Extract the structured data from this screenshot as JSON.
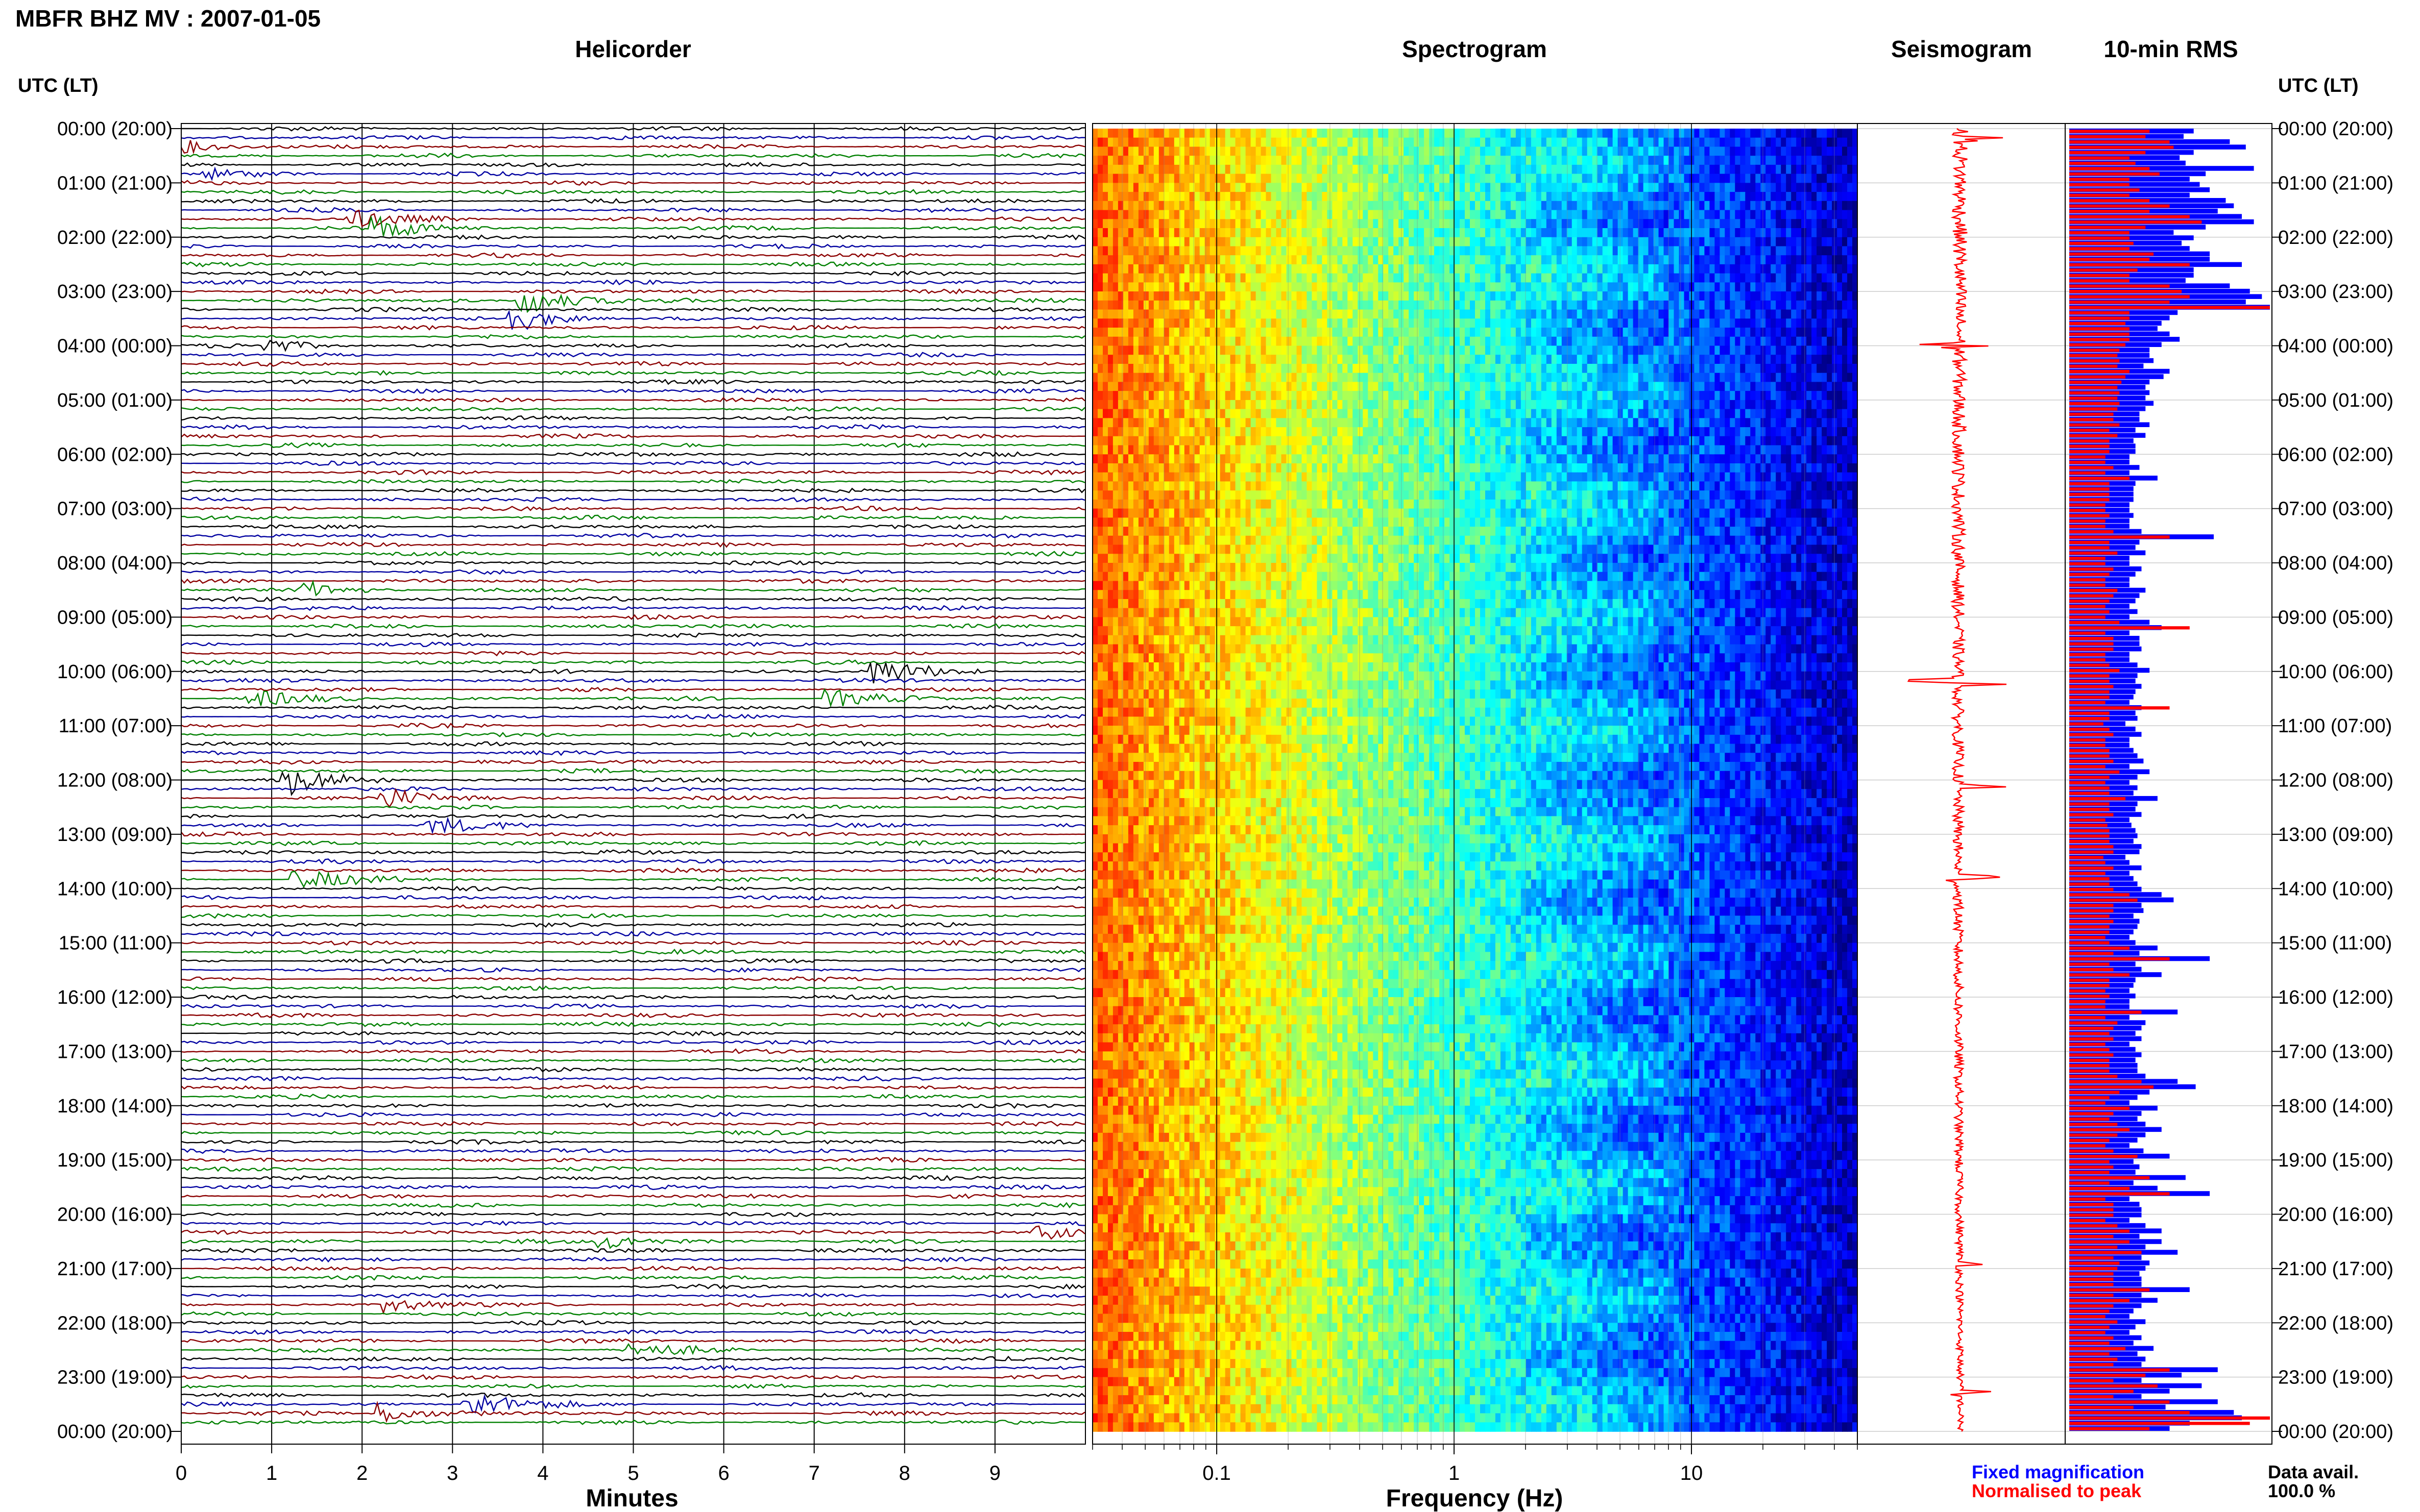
{
  "page_title": "MBFR BHZ MV : 2007-01-05",
  "panel_titles": {
    "helicorder": "Helicorder",
    "spectrogram": "Spectrogram",
    "seismogram": "Seismogram",
    "rms": "10-min RMS"
  },
  "time_axis_label": "UTC (LT)",
  "time_ticks": [
    "00:00 (20:00)",
    "01:00 (21:00)",
    "02:00 (22:00)",
    "03:00 (23:00)",
    "04:00 (00:00)",
    "05:00 (01:00)",
    "06:00 (02:00)",
    "07:00 (03:00)",
    "08:00 (04:00)",
    "09:00 (05:00)",
    "10:00 (06:00)",
    "11:00 (07:00)",
    "12:00 (08:00)",
    "13:00 (09:00)",
    "14:00 (10:00)",
    "15:00 (11:00)",
    "16:00 (12:00)",
    "17:00 (13:00)",
    "18:00 (14:00)",
    "19:00 (15:00)",
    "20:00 (16:00)",
    "21:00 (17:00)",
    "22:00 (18:00)",
    "23:00 (19:00)",
    "00:00 (20:00)"
  ],
  "minutes_axis": {
    "label": "Minutes",
    "ticks": [
      "0",
      "1",
      "2",
      "3",
      "4",
      "5",
      "6",
      "7",
      "8",
      "9"
    ]
  },
  "frequency_axis": {
    "label": "Frequency (Hz)",
    "ticks": [
      "0.1",
      "1",
      "10"
    ]
  },
  "legend": {
    "fixed": "Fixed magnification",
    "normalised": "Normalised to peak"
  },
  "availability": {
    "label": "Data avail.",
    "value": "100.0 %"
  },
  "colors": {
    "trace_cycle": [
      "#000000",
      "#0000a0",
      "#8b0000",
      "#008000"
    ],
    "rms_fixed": "#0000ff",
    "rms_normalised": "#ff0000",
    "seismogram": "#ff0000"
  },
  "chart_data": [
    {
      "type": "line",
      "name": "helicorder",
      "rows_per_hour": 6,
      "hours": 24,
      "x_range_minutes": [
        0,
        10
      ],
      "events": [
        {
          "hour": 0.33,
          "minute": 0.1,
          "amp": 2.0
        },
        {
          "hour": 0.83,
          "minute": 0.3,
          "amp": 1.5
        },
        {
          "hour": 1.67,
          "minute": 1.9,
          "amp": 3.0
        },
        {
          "hour": 1.83,
          "minute": 2.2,
          "amp": 3.5
        },
        {
          "hour": 3.17,
          "minute": 3.8,
          "amp": 5.0
        },
        {
          "hour": 3.5,
          "minute": 3.7,
          "amp": 4.0
        },
        {
          "hour": 4.0,
          "minute": 1.0,
          "amp": 2.0
        },
        {
          "hour": 8.5,
          "minute": 1.4,
          "amp": 2.5
        },
        {
          "hour": 10.0,
          "minute": 7.7,
          "amp": 4.0
        },
        {
          "hour": 10.5,
          "minute": 0.8,
          "amp": 2.5
        },
        {
          "hour": 10.5,
          "minute": 7.2,
          "amp": 3.0
        },
        {
          "hour": 12.0,
          "minute": 1.2,
          "amp": 4.5
        },
        {
          "hour": 12.33,
          "minute": 2.3,
          "amp": 3.0
        },
        {
          "hour": 12.83,
          "minute": 2.8,
          "amp": 2.5
        },
        {
          "hour": 13.83,
          "minute": 1.3,
          "amp": 3.5
        },
        {
          "hour": 20.5,
          "minute": 4.7,
          "amp": 2.5
        },
        {
          "hour": 20.33,
          "minute": 9.5,
          "amp": 2.5
        },
        {
          "hour": 21.67,
          "minute": 2.3,
          "amp": 2.5
        },
        {
          "hour": 22.5,
          "minute": 5.0,
          "amp": 2.5
        },
        {
          "hour": 23.5,
          "minute": 3.2,
          "amp": 4.5
        },
        {
          "hour": 23.67,
          "minute": 2.2,
          "amp": 3.5
        }
      ]
    },
    {
      "type": "heatmap",
      "name": "spectrogram",
      "xscale": "log",
      "xlim": [
        0.03,
        50
      ],
      "colormap": "jet",
      "dominant_band_hz": [
        0.03,
        0.1
      ],
      "hours": 24
    },
    {
      "type": "line",
      "name": "seismogram",
      "hours": 24,
      "spikes_hour": [
        0.2,
        4.0,
        10.2,
        12.1,
        13.8,
        20.9,
        23.3
      ]
    },
    {
      "type": "bar",
      "name": "10-min RMS",
      "orientation": "horizontal",
      "bins_per_hour": 6,
      "series": [
        {
          "name": "Fixed magnification",
          "values": [
            0.62,
            0.57,
            0.8,
            0.88,
            0.62,
            0.55,
            0.58,
            0.92,
            0.68,
            0.6,
            0.65,
            0.7,
            0.6,
            0.78,
            0.82,
            0.74,
            0.86,
            0.92,
            0.68,
            0.52,
            0.62,
            0.56,
            0.6,
            0.7,
            0.7,
            0.86,
            0.62,
            0.62,
            0.58,
            0.8,
            0.9,
            0.96,
            0.88,
            1.0,
            0.54,
            0.5,
            0.46,
            0.44,
            0.5,
            0.55,
            0.46,
            0.4,
            0.4,
            0.42,
            0.37,
            0.5,
            0.47,
            0.4,
            0.38,
            0.4,
            0.38,
            0.42,
            0.38,
            0.35,
            0.35,
            0.4,
            0.33,
            0.38,
            0.32,
            0.33,
            0.33,
            0.3,
            0.3,
            0.35,
            0.3,
            0.44,
            0.33,
            0.32,
            0.32,
            0.32,
            0.3,
            0.3,
            0.32,
            0.3,
            0.3,
            0.36,
            0.72,
            0.35,
            0.33,
            0.38,
            0.3,
            0.3,
            0.36,
            0.33,
            0.3,
            0.3,
            0.38,
            0.35,
            0.33,
            0.3,
            0.34,
            0.3,
            0.4,
            0.46,
            0.3,
            0.35,
            0.35,
            0.36,
            0.3,
            0.3,
            0.34,
            0.4,
            0.34,
            0.33,
            0.36,
            0.33,
            0.32,
            0.3,
            0.36,
            0.33,
            0.34,
            0.28,
            0.33,
            0.36,
            0.3,
            0.3,
            0.32,
            0.34,
            0.37,
            0.3,
            0.4,
            0.34,
            0.3,
            0.34,
            0.32,
            0.44,
            0.34,
            0.33,
            0.36,
            0.3,
            0.31,
            0.33,
            0.34,
            0.32,
            0.36,
            0.35,
            0.28,
            0.3,
            0.36,
            0.3,
            0.32,
            0.34,
            0.36,
            0.46,
            0.52,
            0.36,
            0.37,
            0.32,
            0.35,
            0.34,
            0.32,
            0.3,
            0.33,
            0.44,
            0.35,
            0.7,
            0.33,
            0.36,
            0.46,
            0.33,
            0.32,
            0.3,
            0.33,
            0.3,
            0.3,
            0.54,
            0.3,
            0.38,
            0.36,
            0.33,
            0.36,
            0.3,
            0.33,
            0.36,
            0.33,
            0.34,
            0.34,
            0.38,
            0.54,
            0.63,
            0.4,
            0.34,
            0.3,
            0.44,
            0.36,
            0.34,
            0.38,
            0.46,
            0.38,
            0.34,
            0.3,
            0.37,
            0.5,
            0.32,
            0.35,
            0.33,
            0.58,
            0.32,
            0.44,
            0.7,
            0.3,
            0.35,
            0.36,
            0.36,
            0.3,
            0.38,
            0.46,
            0.35,
            0.46,
            0.38,
            0.54,
            0.36,
            0.4,
            0.38,
            0.35,
            0.36,
            0.36,
            0.6,
            0.36,
            0.44,
            0.36,
            0.32,
            0.3,
            0.38,
            0.33,
            0.3,
            0.36,
            0.32,
            0.42,
            0.34,
            0.38,
            0.36,
            0.74,
            0.56,
            0.36,
            0.66,
            0.5,
            0.36,
            0.74,
            0.48,
            0.82,
            0.86,
            0.6,
            0.5
          ]
        },
        {
          "name": "Normalised to peak",
          "values": [
            0.4,
            0.38,
            0.5,
            0.52,
            0.38,
            0.3,
            0.33,
            0.4,
            0.45,
            0.3,
            0.3,
            0.35,
            0.3,
            0.4,
            0.5,
            0.4,
            0.6,
            0.66,
            0.38,
            0.3,
            0.3,
            0.32,
            0.3,
            0.42,
            0.4,
            0.6,
            0.34,
            0.3,
            0.3,
            0.5,
            0.56,
            0.6,
            0.5,
            1.0,
            0.3,
            0.3,
            0.28,
            0.3,
            0.3,
            0.3,
            0.28,
            0.25,
            0.24,
            0.25,
            0.24,
            0.3,
            0.28,
            0.26,
            0.24,
            0.25,
            0.24,
            0.25,
            0.24,
            0.22,
            0.22,
            0.25,
            0.2,
            0.24,
            0.2,
            0.2,
            0.2,
            0.18,
            0.18,
            0.22,
            0.18,
            0.3,
            0.2,
            0.2,
            0.2,
            0.2,
            0.18,
            0.18,
            0.2,
            0.18,
            0.18,
            0.22,
            0.5,
            0.2,
            0.2,
            0.24,
            0.18,
            0.18,
            0.22,
            0.2,
            0.18,
            0.18,
            0.24,
            0.22,
            0.2,
            0.18,
            0.2,
            0.18,
            0.25,
            0.6,
            0.18,
            0.22,
            0.22,
            0.22,
            0.18,
            0.18,
            0.2,
            0.25,
            0.2,
            0.2,
            0.22,
            0.2,
            0.2,
            0.18,
            0.5,
            0.2,
            0.2,
            0.17,
            0.2,
            0.22,
            0.18,
            0.18,
            0.2,
            0.2,
            0.22,
            0.18,
            0.25,
            0.2,
            0.18,
            0.2,
            0.2,
            0.28,
            0.2,
            0.2,
            0.22,
            0.18,
            0.19,
            0.2,
            0.2,
            0.2,
            0.22,
            0.22,
            0.17,
            0.18,
            0.22,
            0.18,
            0.2,
            0.2,
            0.22,
            0.3,
            0.34,
            0.22,
            0.22,
            0.2,
            0.22,
            0.2,
            0.2,
            0.18,
            0.2,
            0.3,
            0.22,
            0.5,
            0.2,
            0.22,
            0.3,
            0.2,
            0.2,
            0.18,
            0.2,
            0.18,
            0.18,
            0.36,
            0.18,
            0.24,
            0.22,
            0.2,
            0.22,
            0.18,
            0.2,
            0.22,
            0.2,
            0.2,
            0.2,
            0.24,
            0.36,
            0.42,
            0.25,
            0.2,
            0.18,
            0.3,
            0.22,
            0.2,
            0.24,
            0.3,
            0.24,
            0.2,
            0.18,
            0.22,
            0.34,
            0.2,
            0.22,
            0.2,
            0.4,
            0.2,
            0.3,
            0.5,
            0.18,
            0.22,
            0.22,
            0.22,
            0.18,
            0.24,
            0.3,
            0.22,
            0.3,
            0.24,
            0.36,
            0.22,
            0.25,
            0.24,
            0.22,
            0.22,
            0.22,
            0.4,
            0.22,
            0.3,
            0.22,
            0.2,
            0.18,
            0.24,
            0.2,
            0.18,
            0.22,
            0.2,
            0.28,
            0.2,
            0.24,
            0.22,
            0.5,
            0.38,
            0.22,
            0.44,
            0.32,
            0.22,
            0.5,
            0.32,
            0.6,
            1.0,
            0.9,
            0.4
          ]
        }
      ]
    }
  ]
}
